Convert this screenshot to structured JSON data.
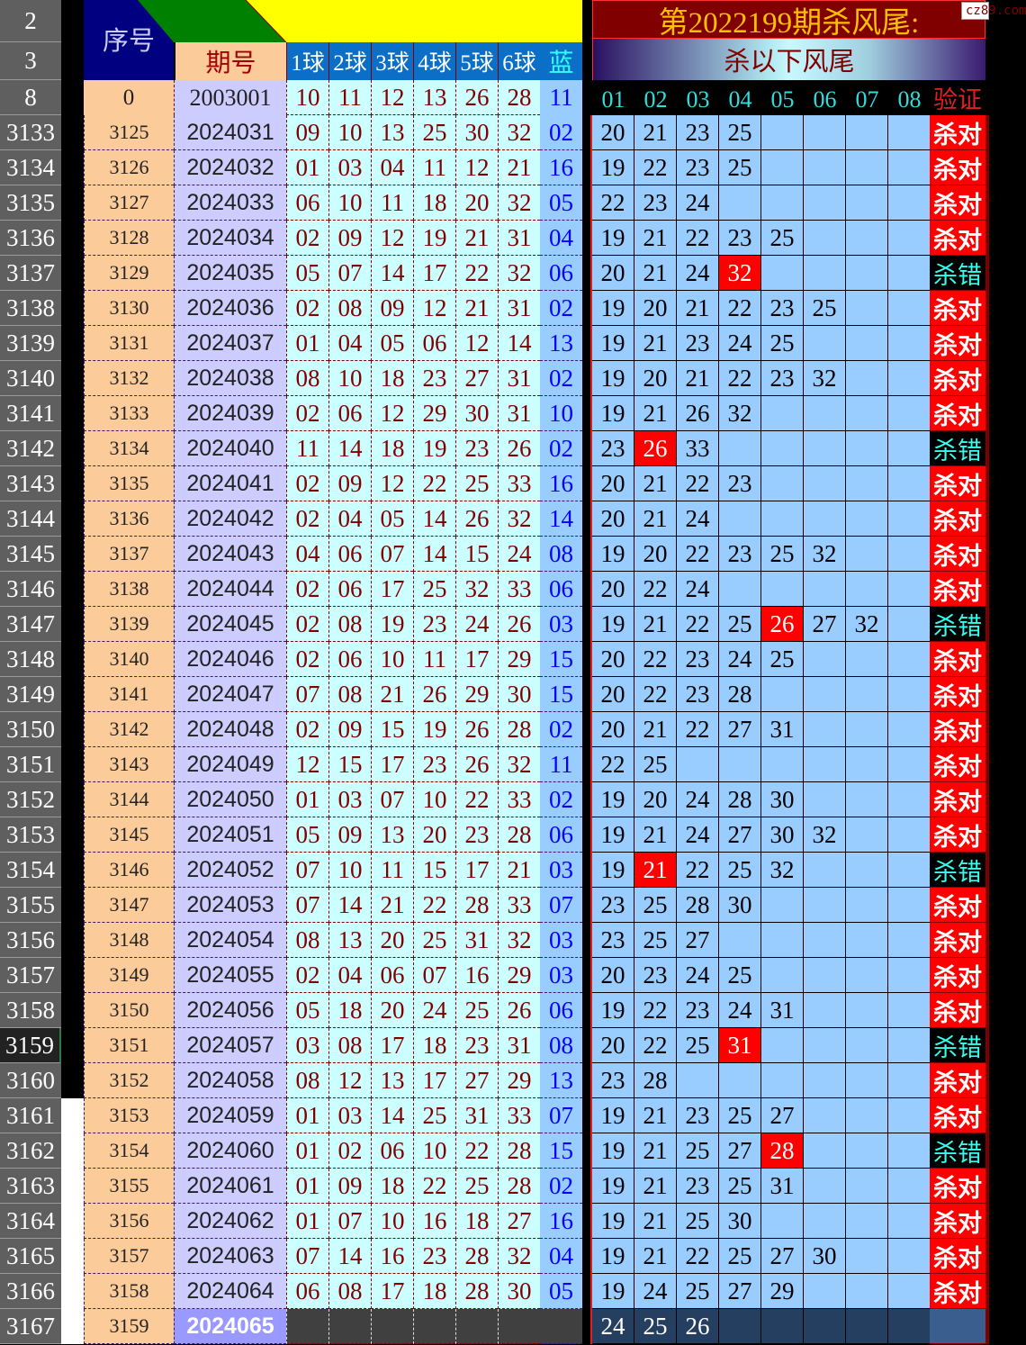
{
  "row_headers_top": [
    "2",
    "3",
    "8"
  ],
  "header": {
    "seq_label": "序号",
    "period_label": "期号",
    "ball_labels": [
      "1球",
      "2球",
      "3球",
      "4球",
      "5球",
      "6球"
    ],
    "blue_label": "蓝",
    "title": "第2022199期杀风尾:",
    "subtitle": "杀以下风尾",
    "kill_labels": [
      "01",
      "02",
      "03",
      "04",
      "05",
      "06",
      "07",
      "08"
    ],
    "verify_label": "验证",
    "watermark": "cz89.com"
  },
  "first_row": {
    "seq": "0",
    "period": "2003001",
    "balls": [
      "10",
      "11",
      "12",
      "13",
      "26",
      "28"
    ],
    "blue": "11"
  },
  "colors": {
    "seq_bg": "#fccb9a",
    "period_bg": "#ccccff",
    "ball_bg": "#ccffff",
    "kill_bg": "#99ccff",
    "hit": "#ff0000",
    "header_red": "#800000",
    "title_text": "#ffc000"
  },
  "rows": [
    {
      "row": "3133",
      "seq": "3125",
      "period": "2024031",
      "balls": [
        "09",
        "10",
        "13",
        "25",
        "30",
        "32"
      ],
      "blue": "02",
      "kills": [
        "20",
        "21",
        "23",
        "25"
      ],
      "hit": -1,
      "verify": "杀对"
    },
    {
      "row": "3134",
      "seq": "3126",
      "period": "2024032",
      "balls": [
        "01",
        "03",
        "04",
        "11",
        "12",
        "21"
      ],
      "blue": "16",
      "kills": [
        "19",
        "22",
        "23",
        "25"
      ],
      "hit": -1,
      "verify": "杀对"
    },
    {
      "row": "3135",
      "seq": "3127",
      "period": "2024033",
      "balls": [
        "06",
        "10",
        "11",
        "18",
        "20",
        "32"
      ],
      "blue": "05",
      "kills": [
        "22",
        "23",
        "24"
      ],
      "hit": -1,
      "verify": "杀对"
    },
    {
      "row": "3136",
      "seq": "3128",
      "period": "2024034",
      "balls": [
        "02",
        "09",
        "12",
        "19",
        "21",
        "31"
      ],
      "blue": "04",
      "kills": [
        "19",
        "21",
        "22",
        "23",
        "25"
      ],
      "hit": -1,
      "verify": "杀对"
    },
    {
      "row": "3137",
      "seq": "3129",
      "period": "2024035",
      "balls": [
        "05",
        "07",
        "14",
        "17",
        "22",
        "32"
      ],
      "blue": "06",
      "kills": [
        "20",
        "21",
        "24",
        "32"
      ],
      "hit": 3,
      "verify": "杀错"
    },
    {
      "row": "3138",
      "seq": "3130",
      "period": "2024036",
      "balls": [
        "02",
        "08",
        "09",
        "12",
        "21",
        "31"
      ],
      "blue": "02",
      "kills": [
        "19",
        "20",
        "21",
        "22",
        "23",
        "25"
      ],
      "hit": -1,
      "verify": "杀对"
    },
    {
      "row": "3139",
      "seq": "3131",
      "period": "2024037",
      "balls": [
        "01",
        "04",
        "05",
        "06",
        "12",
        "14"
      ],
      "blue": "13",
      "kills": [
        "19",
        "21",
        "23",
        "24",
        "25"
      ],
      "hit": -1,
      "verify": "杀对"
    },
    {
      "row": "3140",
      "seq": "3132",
      "period": "2024038",
      "balls": [
        "08",
        "10",
        "18",
        "23",
        "27",
        "31"
      ],
      "blue": "02",
      "kills": [
        "19",
        "20",
        "21",
        "22",
        "23",
        "32"
      ],
      "hit": -1,
      "verify": "杀对"
    },
    {
      "row": "3141",
      "seq": "3133",
      "period": "2024039",
      "balls": [
        "02",
        "06",
        "12",
        "29",
        "30",
        "31"
      ],
      "blue": "10",
      "kills": [
        "19",
        "21",
        "26",
        "32"
      ],
      "hit": -1,
      "verify": "杀对"
    },
    {
      "row": "3142",
      "seq": "3134",
      "period": "2024040",
      "balls": [
        "11",
        "14",
        "18",
        "19",
        "23",
        "26"
      ],
      "blue": "02",
      "kills": [
        "23",
        "26",
        "33"
      ],
      "hit": 1,
      "verify": "杀错"
    },
    {
      "row": "3143",
      "seq": "3135",
      "period": "2024041",
      "balls": [
        "02",
        "09",
        "12",
        "22",
        "25",
        "33"
      ],
      "blue": "16",
      "kills": [
        "20",
        "21",
        "22",
        "23"
      ],
      "hit": -1,
      "verify": "杀对"
    },
    {
      "row": "3144",
      "seq": "3136",
      "period": "2024042",
      "balls": [
        "02",
        "04",
        "05",
        "14",
        "26",
        "32"
      ],
      "blue": "14",
      "kills": [
        "20",
        "21",
        "24"
      ],
      "hit": -1,
      "verify": "杀对"
    },
    {
      "row": "3145",
      "seq": "3137",
      "period": "2024043",
      "balls": [
        "04",
        "06",
        "07",
        "14",
        "15",
        "24"
      ],
      "blue": "08",
      "kills": [
        "19",
        "20",
        "22",
        "23",
        "25",
        "32"
      ],
      "hit": -1,
      "verify": "杀对"
    },
    {
      "row": "3146",
      "seq": "3138",
      "period": "2024044",
      "balls": [
        "02",
        "06",
        "17",
        "25",
        "32",
        "33"
      ],
      "blue": "06",
      "kills": [
        "20",
        "22",
        "24"
      ],
      "hit": -1,
      "verify": "杀对"
    },
    {
      "row": "3147",
      "seq": "3139",
      "period": "2024045",
      "balls": [
        "02",
        "08",
        "19",
        "23",
        "24",
        "26"
      ],
      "blue": "03",
      "kills": [
        "19",
        "21",
        "22",
        "25",
        "26",
        "27",
        "32"
      ],
      "hit": 4,
      "verify": "杀错"
    },
    {
      "row": "3148",
      "seq": "3140",
      "period": "2024046",
      "balls": [
        "02",
        "06",
        "10",
        "11",
        "17",
        "29"
      ],
      "blue": "15",
      "kills": [
        "20",
        "22",
        "23",
        "24",
        "25"
      ],
      "hit": -1,
      "verify": "杀对"
    },
    {
      "row": "3149",
      "seq": "3141",
      "period": "2024047",
      "balls": [
        "07",
        "08",
        "21",
        "26",
        "29",
        "30"
      ],
      "blue": "15",
      "kills": [
        "20",
        "22",
        "23",
        "28"
      ],
      "hit": -1,
      "verify": "杀对"
    },
    {
      "row": "3150",
      "seq": "3142",
      "period": "2024048",
      "balls": [
        "02",
        "09",
        "15",
        "19",
        "26",
        "28"
      ],
      "blue": "02",
      "kills": [
        "20",
        "21",
        "22",
        "27",
        "31"
      ],
      "hit": -1,
      "verify": "杀对"
    },
    {
      "row": "3151",
      "seq": "3143",
      "period": "2024049",
      "balls": [
        "12",
        "15",
        "17",
        "23",
        "26",
        "32"
      ],
      "blue": "11",
      "kills": [
        "22",
        "25"
      ],
      "hit": -1,
      "verify": "杀对"
    },
    {
      "row": "3152",
      "seq": "3144",
      "period": "2024050",
      "balls": [
        "01",
        "03",
        "07",
        "10",
        "22",
        "33"
      ],
      "blue": "02",
      "kills": [
        "19",
        "20",
        "24",
        "28",
        "30"
      ],
      "hit": -1,
      "verify": "杀对"
    },
    {
      "row": "3153",
      "seq": "3145",
      "period": "2024051",
      "balls": [
        "05",
        "09",
        "13",
        "20",
        "23",
        "28"
      ],
      "blue": "06",
      "kills": [
        "19",
        "21",
        "24",
        "27",
        "30",
        "32"
      ],
      "hit": -1,
      "verify": "杀对"
    },
    {
      "row": "3154",
      "seq": "3146",
      "period": "2024052",
      "balls": [
        "07",
        "10",
        "11",
        "15",
        "17",
        "21"
      ],
      "blue": "03",
      "kills": [
        "19",
        "21",
        "22",
        "25",
        "32"
      ],
      "hit": 1,
      "verify": "杀错"
    },
    {
      "row": "3155",
      "seq": "3147",
      "period": "2024053",
      "balls": [
        "07",
        "14",
        "21",
        "22",
        "28",
        "33"
      ],
      "blue": "07",
      "kills": [
        "23",
        "25",
        "28",
        "30"
      ],
      "hit": -1,
      "verify": "杀对"
    },
    {
      "row": "3156",
      "seq": "3148",
      "period": "2024054",
      "balls": [
        "08",
        "13",
        "20",
        "25",
        "31",
        "32"
      ],
      "blue": "03",
      "kills": [
        "23",
        "25",
        "27"
      ],
      "hit": -1,
      "verify": "杀对"
    },
    {
      "row": "3157",
      "seq": "3149",
      "period": "2024055",
      "balls": [
        "02",
        "04",
        "06",
        "07",
        "16",
        "29"
      ],
      "blue": "03",
      "kills": [
        "20",
        "23",
        "24",
        "25"
      ],
      "hit": -1,
      "verify": "杀对"
    },
    {
      "row": "3158",
      "seq": "3150",
      "period": "2024056",
      "balls": [
        "05",
        "18",
        "20",
        "24",
        "25",
        "26"
      ],
      "blue": "06",
      "kills": [
        "19",
        "22",
        "23",
        "24",
        "31"
      ],
      "hit": -1,
      "verify": "杀对"
    },
    {
      "row": "3159",
      "seq": "3151",
      "period": "2024057",
      "balls": [
        "03",
        "08",
        "17",
        "18",
        "23",
        "31"
      ],
      "blue": "08",
      "kills": [
        "20",
        "22",
        "25",
        "31"
      ],
      "hit": 3,
      "verify": "杀错"
    },
    {
      "row": "3160",
      "seq": "3152",
      "period": "2024058",
      "balls": [
        "08",
        "12",
        "13",
        "17",
        "27",
        "29"
      ],
      "blue": "13",
      "kills": [
        "23",
        "28"
      ],
      "hit": -1,
      "verify": "杀对"
    },
    {
      "row": "3161",
      "seq": "3153",
      "period": "2024059",
      "balls": [
        "01",
        "03",
        "14",
        "25",
        "31",
        "33"
      ],
      "blue": "07",
      "kills": [
        "19",
        "21",
        "23",
        "25",
        "27"
      ],
      "hit": -1,
      "verify": "杀对"
    },
    {
      "row": "3162",
      "seq": "3154",
      "period": "2024060",
      "balls": [
        "01",
        "02",
        "06",
        "10",
        "22",
        "28"
      ],
      "blue": "15",
      "kills": [
        "19",
        "21",
        "25",
        "27",
        "28"
      ],
      "hit": 4,
      "verify": "杀错"
    },
    {
      "row": "3163",
      "seq": "3155",
      "period": "2024061",
      "balls": [
        "01",
        "09",
        "18",
        "22",
        "25",
        "28"
      ],
      "blue": "02",
      "kills": [
        "19",
        "21",
        "23",
        "25",
        "31"
      ],
      "hit": -1,
      "verify": "杀对"
    },
    {
      "row": "3164",
      "seq": "3156",
      "period": "2024062",
      "balls": [
        "01",
        "07",
        "10",
        "16",
        "18",
        "27"
      ],
      "blue": "16",
      "kills": [
        "19",
        "21",
        "25",
        "30"
      ],
      "hit": -1,
      "verify": "杀对"
    },
    {
      "row": "3165",
      "seq": "3157",
      "period": "2024063",
      "balls": [
        "07",
        "14",
        "16",
        "23",
        "28",
        "32"
      ],
      "blue": "04",
      "kills": [
        "19",
        "21",
        "22",
        "25",
        "27",
        "30"
      ],
      "hit": -1,
      "verify": "杀对"
    },
    {
      "row": "3166",
      "seq": "3158",
      "period": "2024064",
      "balls": [
        "06",
        "08",
        "17",
        "18",
        "28",
        "30"
      ],
      "blue": "05",
      "kills": [
        "19",
        "24",
        "25",
        "27",
        "29"
      ],
      "hit": -1,
      "verify": "杀对"
    },
    {
      "row": "3167",
      "seq": "3159",
      "period": "2024065",
      "balls": [
        "",
        "",
        "",
        "",
        "",
        ""
      ],
      "blue": "",
      "kills": [
        "24",
        "25",
        "26"
      ],
      "hit": -1,
      "verify": "",
      "current": true
    }
  ]
}
